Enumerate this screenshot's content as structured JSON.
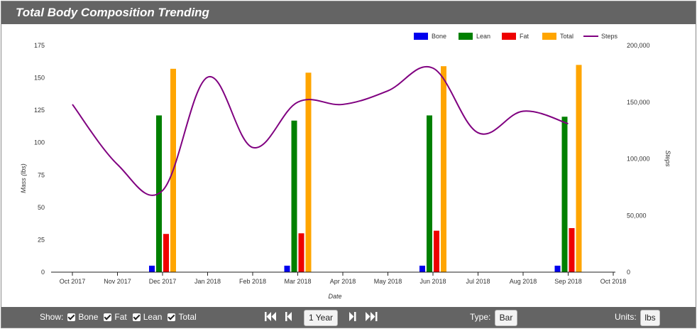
{
  "title": "Total Body Composition Trending",
  "footer": {
    "show_label": "Show:",
    "toggles": [
      {
        "label": "Bone",
        "checked": true
      },
      {
        "label": "Fat",
        "checked": true
      },
      {
        "label": "Lean",
        "checked": true
      },
      {
        "label": "Total",
        "checked": true
      }
    ],
    "range_label": "1 Year",
    "type_label": "Type:",
    "type_value": "Bar",
    "units_label": "Units:",
    "units_value": "lbs"
  },
  "chart_data": {
    "type": "bar",
    "xlabel": "Date",
    "ylabel": "Mass (lbs)",
    "y2label": "Steps",
    "ylim": [
      0,
      175
    ],
    "y2lim": [
      0,
      200000
    ],
    "yticks": [
      "0",
      "25",
      "50",
      "75",
      "100",
      "125",
      "150",
      "175"
    ],
    "y2ticks": [
      "0",
      "50,000",
      "100,000",
      "150,000",
      "200,000"
    ],
    "x_ticks": [
      "Oct 2017",
      "Nov 2017",
      "Dec 2017",
      "Jan 2018",
      "Feb 2018",
      "Mar 2018",
      "Apr 2018",
      "May 2018",
      "Jun 2018",
      "Jul 2018",
      "Aug 2018",
      "Sep 2018",
      "Oct 2018"
    ],
    "categories": [
      "Dec 2017",
      "Mar 2018",
      "Jun 2018",
      "Sep 2018"
    ],
    "legend_position": "top-right",
    "series": [
      {
        "name": "Bone",
        "color": "#0000ee",
        "values": [
          5,
          5,
          5,
          5
        ]
      },
      {
        "name": "Lean",
        "color": "#008000",
        "values": [
          121,
          117,
          121,
          120
        ]
      },
      {
        "name": "Fat",
        "color": "#ee0000",
        "values": [
          29.5,
          30,
          32,
          34
        ]
      },
      {
        "name": "Total",
        "color": "#ffa500",
        "values": [
          157,
          154,
          159,
          160
        ]
      }
    ],
    "line_series": {
      "name": "Steps",
      "color": "#800080",
      "x": [
        "Oct 2017",
        "Nov 2017",
        "Dec 2017",
        "Jan 2018",
        "Feb 2018",
        "Mar 2018",
        "Apr 2018",
        "May 2018",
        "Jun 2018",
        "Jul 2018",
        "Aug 2018",
        "Sep 2018"
      ],
      "values": [
        148000,
        95000,
        72000,
        172000,
        110000,
        150000,
        148000,
        160000,
        180000,
        123000,
        142000,
        131000
      ]
    }
  }
}
